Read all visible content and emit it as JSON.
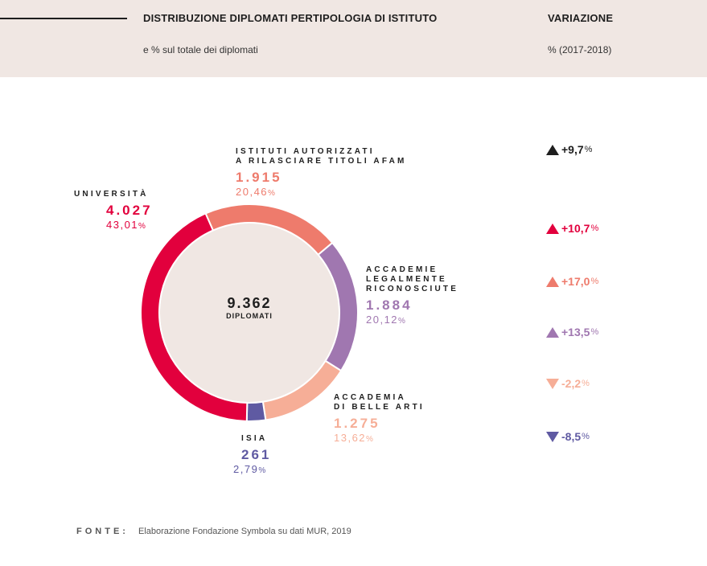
{
  "header": {
    "title": "DISTRIBUZIONE DIPLOMATI PERTIPOLOGIA DI ISTITUTO",
    "subtitle": "e % sul totale dei diplomati",
    "variation_title": "VARIAZIONE",
    "variation_subtitle": "% (2017-2018)"
  },
  "center": {
    "value": "9.362",
    "label": "DIPLOMATI"
  },
  "chart_data": {
    "type": "pie",
    "total": 9362,
    "slices": [
      {
        "name": "ISTITUTI AUTORIZZATI A RILASCIARE TITOLI AFAM",
        "value": 1915,
        "value_label": "1.915",
        "percent": 20.46,
        "percent_label": "20,46",
        "color": "#ee7b6c",
        "variation": "+9,7",
        "variation_dir": "up",
        "variation_color": "#1e1e1e"
      },
      {
        "name": "ACCADEMIE LEGALMENTE RICONOSCIUTE",
        "value": 1884,
        "value_label": "1.884",
        "percent": 20.12,
        "percent_label": "20,12",
        "color": "#a077b0",
        "variation": "+13,5",
        "variation_dir": "up",
        "variation_color": "#a077b0"
      },
      {
        "name": "ACCADEMIA DI BELLE ARTI",
        "value": 1275,
        "value_label": "1.275",
        "percent": 13.62,
        "percent_label": "13,62",
        "color": "#f6ae97",
        "variation": "-2,2",
        "variation_dir": "down",
        "variation_color": "#f6ae97"
      },
      {
        "name": "ISIA",
        "value": 261,
        "value_label": "261",
        "percent": 2.79,
        "percent_label": "2,79",
        "color": "#5f5aa2",
        "variation": "-8,5",
        "variation_dir": "down",
        "variation_color": "#5f5aa2"
      },
      {
        "name": "UNIVERSITÀ",
        "value": 4027,
        "value_label": "4.027",
        "percent": 43.01,
        "percent_label": "43,01",
        "color": "#e2003d",
        "variation": "+10,7",
        "variation_dir": "up",
        "variation_color": "#e2003d"
      }
    ],
    "extra_variation": {
      "value": "+17,0",
      "dir": "up",
      "color": "#ee7b6c"
    },
    "center_fill": "#f0e7e3"
  },
  "labels": {
    "afam_name": "ISTITUTI AUTORIZZATI\nA RILASCIARE TITOLI AFAM",
    "universita_name": "UNIVERSITÀ",
    "accademie_name": "ACCADEMIE\nLEGALMENTE\nRICONOSCIUTE",
    "belle_arti_name": "ACCADEMIA\nDI BELLE ARTI",
    "isia_name": "ISIA",
    "percent_symbol": "%"
  },
  "source": {
    "label": "FONTE:",
    "text": "Elaborazione Fondazione Symbola su dati MUR, 2019"
  }
}
